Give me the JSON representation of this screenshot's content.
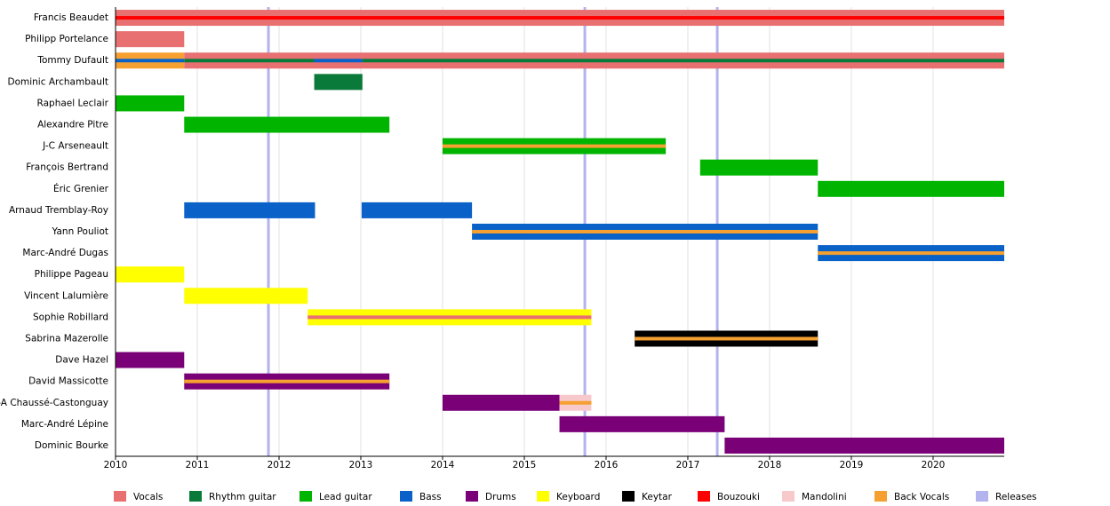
{
  "chart_data": {
    "type": "timeline",
    "xlim": [
      2010,
      2020.87
    ],
    "xticks": [
      2010,
      2011,
      2012,
      2013,
      2014,
      2015,
      2016,
      2017,
      2018,
      2019,
      2020
    ],
    "grid": true,
    "legend": [
      {
        "name": "Vocals",
        "color": "#e87070"
      },
      {
        "name": "Rhythm guitar",
        "color": "#0a7a3a"
      },
      {
        "name": "Lead guitar",
        "color": "#00b400"
      },
      {
        "name": "Bass",
        "color": "#0a62c8"
      },
      {
        "name": "Drums",
        "color": "#7a0078"
      },
      {
        "name": "Keyboard",
        "color": "#ffff00"
      },
      {
        "name": "Keytar",
        "color": "#000000"
      },
      {
        "name": "Bouzouki",
        "color": "#ff0000"
      },
      {
        "name": "Mandolini",
        "color": "#f7c9cb"
      },
      {
        "name": "Back Vocals",
        "color": "#f5a030"
      },
      {
        "name": "Releases",
        "color": "#b3b3ef"
      }
    ],
    "releases": [
      2011.87,
      2015.74,
      2017.36
    ],
    "rows": [
      {
        "name": "Francis Beaudet",
        "bars": [
          {
            "role": "Vocals",
            "start": 2010,
            "end": 2020.87
          },
          {
            "role": "Bouzouki",
            "start": 2010,
            "end": 2020.87,
            "thin": true
          }
        ]
      },
      {
        "name": "Philipp Portelance",
        "bars": [
          {
            "role": "Vocals",
            "start": 2010,
            "end": 2010.84
          }
        ]
      },
      {
        "name": "Tommy Dufault",
        "bars": [
          {
            "role": "Back Vocals",
            "start": 2010,
            "end": 2010.84
          },
          {
            "role": "Bass",
            "start": 2010,
            "end": 2010.84,
            "thin": true
          },
          {
            "role": "Vocals",
            "start": 2010.84,
            "end": 2020.87
          },
          {
            "role": "Rhythm guitar",
            "start": 2010.84,
            "end": 2012.43,
            "thin": true
          },
          {
            "role": "Bass",
            "start": 2012.43,
            "end": 2013.02,
            "thin": true
          },
          {
            "role": "Rhythm guitar",
            "start": 2013.02,
            "end": 2020.87,
            "thin": true
          }
        ]
      },
      {
        "name": "Dominic Archambault",
        "bars": [
          {
            "role": "Rhythm guitar",
            "start": 2012.43,
            "end": 2013.02
          }
        ]
      },
      {
        "name": "Raphael Leclair",
        "bars": [
          {
            "role": "Lead guitar",
            "start": 2010,
            "end": 2010.84
          }
        ]
      },
      {
        "name": "Alexandre Pitre",
        "bars": [
          {
            "role": "Lead guitar",
            "start": 2010.84,
            "end": 2013.35
          }
        ]
      },
      {
        "name": "J-C Arseneault",
        "bars": [
          {
            "role": "Lead guitar",
            "start": 2014.0,
            "end": 2016.73
          },
          {
            "role": "Back Vocals",
            "start": 2014.0,
            "end": 2016.73,
            "thin": true
          }
        ]
      },
      {
        "name": "François Bertrand",
        "bars": [
          {
            "role": "Lead guitar",
            "start": 2017.15,
            "end": 2018.59
          }
        ]
      },
      {
        "name": "Éric Grenier",
        "bars": [
          {
            "role": "Lead guitar",
            "start": 2018.59,
            "end": 2020.87
          }
        ]
      },
      {
        "name": "Arnaud Tremblay-Roy",
        "bars": [
          {
            "role": "Bass",
            "start": 2010.84,
            "end": 2012.44
          },
          {
            "role": "Bass",
            "start": 2013.01,
            "end": 2014.36
          }
        ]
      },
      {
        "name": "Yann Pouliot",
        "bars": [
          {
            "role": "Bass",
            "start": 2014.36,
            "end": 2018.59
          },
          {
            "role": "Back Vocals",
            "start": 2014.36,
            "end": 2018.59,
            "thin": true
          }
        ]
      },
      {
        "name": "Marc-André Dugas",
        "bars": [
          {
            "role": "Bass",
            "start": 2018.59,
            "end": 2020.87
          },
          {
            "role": "Back Vocals",
            "start": 2018.59,
            "end": 2020.87,
            "thin": true
          }
        ]
      },
      {
        "name": "Philippe Pageau",
        "bars": [
          {
            "role": "Keyboard",
            "start": 2010,
            "end": 2010.84
          }
        ]
      },
      {
        "name": "Vincent Lalumière",
        "bars": [
          {
            "role": "Keyboard",
            "start": 2010.84,
            "end": 2012.35
          }
        ]
      },
      {
        "name": "Sophie Robillard",
        "bars": [
          {
            "role": "Keyboard",
            "start": 2012.35,
            "end": 2015.82
          },
          {
            "role": "Vocals",
            "start": 2012.35,
            "end": 2015.82,
            "thin": true
          }
        ]
      },
      {
        "name": "Sabrina Mazerolle",
        "bars": [
          {
            "role": "Keytar",
            "start": 2016.35,
            "end": 2018.59
          },
          {
            "role": "Back Vocals",
            "start": 2016.35,
            "end": 2018.59,
            "thin": true
          }
        ]
      },
      {
        "name": "Dave Hazel",
        "bars": [
          {
            "role": "Drums",
            "start": 2010,
            "end": 2010.84
          }
        ]
      },
      {
        "name": "David Massicotte",
        "bars": [
          {
            "role": "Drums",
            "start": 2010.84,
            "end": 2013.35
          },
          {
            "role": "Back Vocals",
            "start": 2010.84,
            "end": 2013.35,
            "thin": true
          }
        ]
      },
      {
        "name": "P-A Chaussé-Castonguay",
        "bars": [
          {
            "role": "Drums",
            "start": 2014.0,
            "end": 2015.43
          },
          {
            "role": "Mandolini",
            "start": 2015.43,
            "end": 2015.82
          },
          {
            "role": "Back Vocals",
            "start": 2015.43,
            "end": 2015.82,
            "thin": true
          }
        ]
      },
      {
        "name": "Marc-André Lépine",
        "bars": [
          {
            "role": "Drums",
            "start": 2015.43,
            "end": 2017.45
          }
        ]
      },
      {
        "name": "Dominic Bourke",
        "bars": [
          {
            "role": "Drums",
            "start": 2017.45,
            "end": 2020.87
          }
        ]
      }
    ]
  }
}
